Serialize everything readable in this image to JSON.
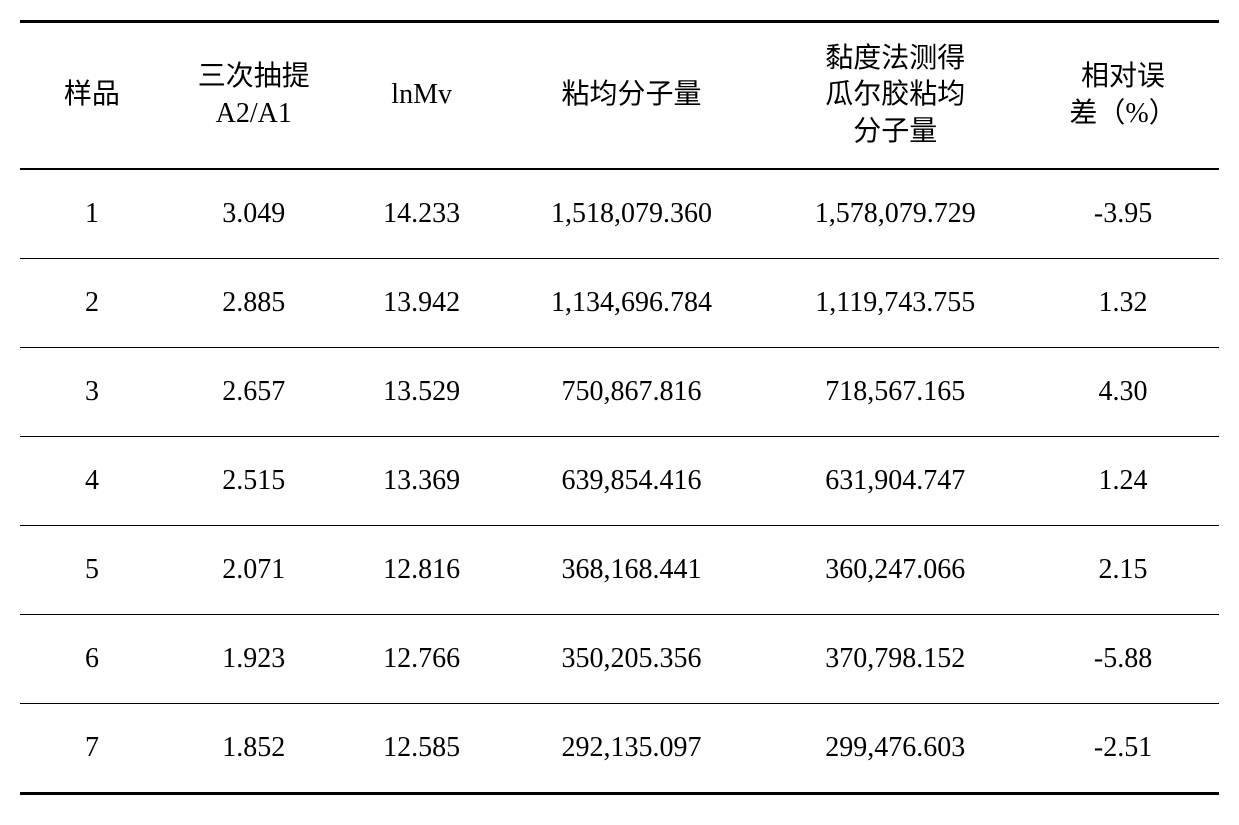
{
  "table": {
    "columns": [
      {
        "label": "样品",
        "width": "12%"
      },
      {
        "label": "三次抽提\nA2/A1",
        "width": "15%"
      },
      {
        "label": "lnMv",
        "width": "13%"
      },
      {
        "label": "粘均分子量",
        "width": "22%"
      },
      {
        "label": "黏度法测得\n瓜尔胶粘均\n分子量",
        "width": "22%"
      },
      {
        "label": "相对误\n差（%）",
        "width": "16%"
      }
    ],
    "rows": [
      [
        "1",
        "3.049",
        "14.233",
        "1,518,079.360",
        "1,578,079.729",
        "-3.95"
      ],
      [
        "2",
        "2.885",
        "13.942",
        "1,134,696.784",
        "1,119,743.755",
        "1.32"
      ],
      [
        "3",
        "2.657",
        "13.529",
        "750,867.816",
        "718,567.165",
        "4.30"
      ],
      [
        "4",
        "2.515",
        "13.369",
        "639,854.416",
        "631,904.747",
        "1.24"
      ],
      [
        "5",
        "2.071",
        "12.816",
        "368,168.441",
        "360,247.066",
        "2.15"
      ],
      [
        "6",
        "1.923",
        "12.766",
        "350,205.356",
        "370,798.152",
        "-5.88"
      ],
      [
        "7",
        "1.852",
        "12.585",
        "292,135.097",
        "299,476.603",
        "-2.51"
      ]
    ],
    "styling": {
      "border_top_width": 3,
      "border_header_bottom_width": 2,
      "border_row_width": 1.5,
      "border_bottom_width": 3,
      "border_color": "#000000",
      "background_color": "#ffffff",
      "text_color": "#000000",
      "header_fontsize": 28,
      "cell_fontsize": 28,
      "header_padding": "18px 8px",
      "cell_padding": "28px 8px",
      "font_family_header": "SimSun, Times New Roman, serif",
      "font_family_cell": "Times New Roman, serif"
    }
  }
}
